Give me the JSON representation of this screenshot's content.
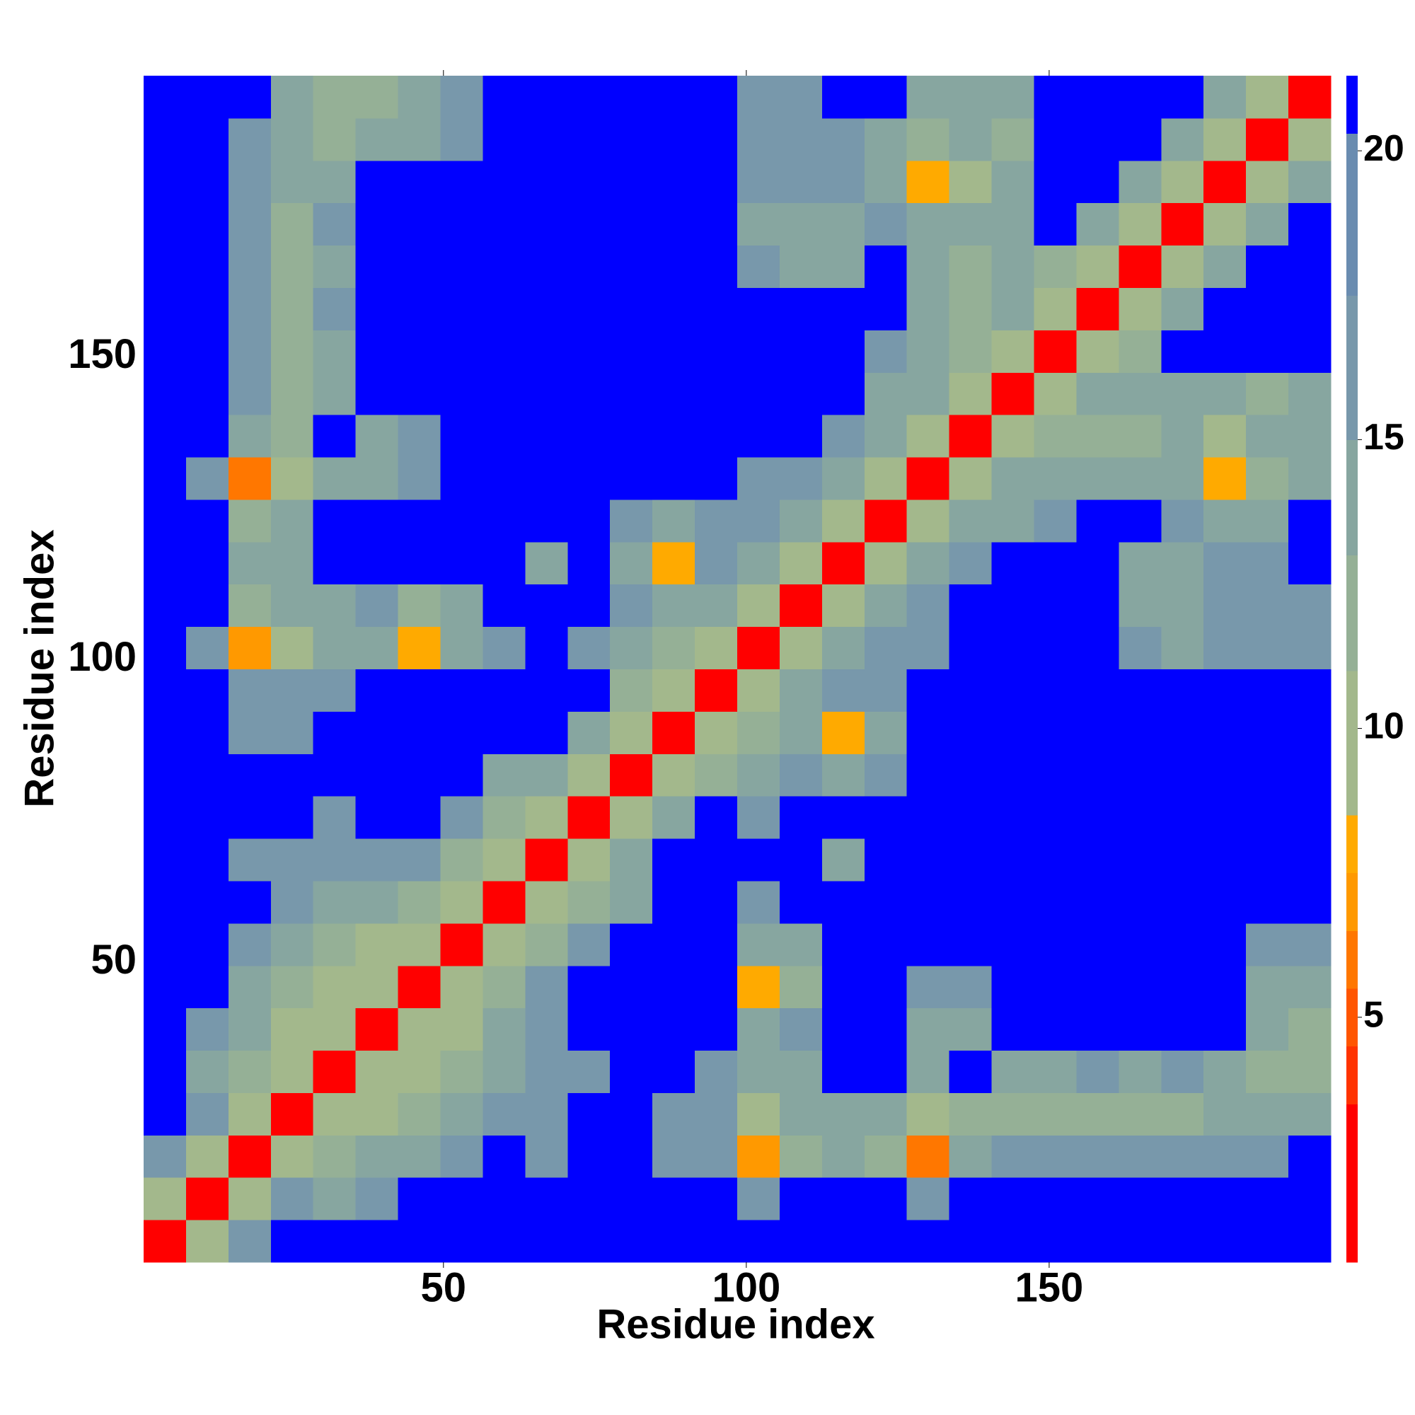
{
  "chart_data": {
    "type": "heatmap",
    "xlabel": "Residue index",
    "ylabel": "Residue index",
    "xlim": [
      0.5,
      196.5
    ],
    "ylim": [
      0.5,
      196.5
    ],
    "xticks": [
      50,
      100,
      150
    ],
    "yticks": [
      50,
      100,
      150
    ],
    "xbins": [
      0.5,
      7.5,
      14.5,
      21.5,
      28.5,
      35.5,
      42.5,
      49.5,
      56.5,
      63.5,
      70.5,
      77.5,
      84.5,
      91.5,
      98.5,
      105.5,
      112.5,
      119.5,
      126.5,
      133.5,
      140.5,
      147.5,
      154.5,
      161.5,
      168.5,
      175.5,
      182.5,
      189.5,
      196.5
    ],
    "ybins": [
      0.5,
      7.5,
      14.5,
      21.5,
      28.5,
      35.5,
      42.5,
      49.5,
      56.5,
      63.5,
      70.5,
      77.5,
      84.5,
      91.5,
      98.5,
      105.5,
      112.5,
      119.5,
      126.5,
      133.5,
      140.5,
      147.5,
      154.5,
      161.5,
      168.5,
      175.5,
      182.5,
      189.5,
      196.5
    ],
    "z": [
      [
        3,
        10,
        16,
        21,
        21,
        21,
        21,
        21,
        21,
        21,
        21,
        21,
        21,
        21,
        21,
        21,
        21,
        21,
        21,
        21,
        21,
        21,
        21,
        21,
        21,
        21,
        21,
        21
      ],
      [
        10,
        3,
        10,
        16,
        14,
        15,
        21,
        21,
        21,
        21,
        21,
        21,
        21,
        21,
        15,
        21,
        21,
        21,
        15,
        21,
        21,
        21,
        21,
        21,
        21,
        21,
        21,
        21
      ],
      [
        16,
        10,
        3,
        10,
        11,
        13,
        14,
        15,
        21,
        15,
        21,
        21,
        16,
        15,
        7,
        12,
        14,
        12,
        6,
        13,
        15,
        16,
        17,
        17,
        16,
        15,
        16,
        21
      ],
      [
        21,
        16,
        10,
        3,
        10,
        10,
        12,
        13,
        15,
        16,
        21,
        21,
        16,
        15,
        10,
        13,
        14,
        13,
        9,
        12,
        11,
        12,
        12,
        11,
        12,
        13,
        13,
        14
      ],
      [
        21,
        14,
        11,
        10,
        3,
        10,
        10,
        12,
        14,
        15,
        15,
        21,
        21,
        16,
        13,
        14,
        21,
        21,
        13,
        21,
        14,
        14,
        15,
        14,
        15,
        13,
        12,
        12
      ],
      [
        21,
        15,
        13,
        10,
        10,
        3,
        10,
        10,
        13,
        15,
        21,
        21,
        21,
        21,
        13,
        15,
        21,
        21,
        14,
        14,
        21,
        21,
        21,
        21,
        21,
        21,
        13,
        12
      ],
      [
        21,
        21,
        14,
        12,
        10,
        10,
        3,
        10,
        12,
        15,
        21,
        21,
        21,
        21,
        8,
        12,
        21,
        21,
        15,
        16,
        21,
        21,
        21,
        21,
        21,
        21,
        14,
        13
      ],
      [
        21,
        21,
        15,
        13,
        12,
        10,
        10,
        3,
        10,
        12,
        15,
        21,
        21,
        21,
        14,
        14,
        21,
        21,
        21,
        21,
        21,
        21,
        21,
        21,
        21,
        21,
        16,
        16
      ],
      [
        21,
        21,
        21,
        15,
        14,
        13,
        12,
        10,
        3,
        10,
        12,
        14,
        21,
        21,
        16,
        21,
        21,
        21,
        21,
        21,
        21,
        21,
        21,
        21,
        21,
        21,
        21,
        21
      ],
      [
        21,
        21,
        15,
        16,
        15,
        15,
        15,
        12,
        10,
        3,
        10,
        13,
        21,
        21,
        21,
        21,
        14,
        21,
        21,
        21,
        21,
        21,
        21,
        21,
        21,
        21,
        21,
        21
      ],
      [
        21,
        21,
        21,
        21,
        15,
        21,
        21,
        15,
        12,
        10,
        3,
        10,
        13,
        21,
        15,
        21,
        21,
        21,
        21,
        21,
        21,
        21,
        21,
        21,
        21,
        21,
        21,
        21
      ],
      [
        21,
        21,
        21,
        21,
        21,
        21,
        21,
        21,
        14,
        13,
        10,
        3,
        10,
        12,
        14,
        15,
        14,
        15,
        21,
        21,
        21,
        21,
        21,
        21,
        21,
        21,
        21,
        21
      ],
      [
        21,
        21,
        16,
        16,
        21,
        21,
        21,
        21,
        21,
        21,
        13,
        10,
        3,
        10,
        12,
        14,
        8,
        13,
        21,
        21,
        21,
        21,
        21,
        21,
        21,
        21,
        21,
        21
      ],
      [
        21,
        21,
        15,
        15,
        16,
        21,
        21,
        21,
        21,
        21,
        21,
        12,
        10,
        3,
        10,
        13,
        15,
        16,
        21,
        21,
        21,
        21,
        21,
        21,
        21,
        21,
        21,
        21
      ],
      [
        21,
        15,
        7,
        10,
        13,
        13,
        8,
        14,
        16,
        21,
        15,
        14,
        12,
        10,
        3,
        10,
        13,
        15,
        16,
        21,
        21,
        21,
        21,
        15,
        14,
        15,
        15,
        16
      ],
      [
        21,
        21,
        12,
        13,
        14,
        15,
        12,
        14,
        21,
        21,
        21,
        15,
        14,
        13,
        10,
        3,
        10,
        13,
        15,
        21,
        21,
        21,
        21,
        14,
        13,
        15,
        15,
        15
      ],
      [
        21,
        21,
        14,
        14,
        21,
        21,
        21,
        21,
        21,
        14,
        21,
        14,
        8,
        15,
        13,
        10,
        3,
        10,
        14,
        15,
        21,
        21,
        21,
        14,
        14,
        15,
        15,
        21
      ],
      [
        21,
        21,
        12,
        13,
        21,
        21,
        21,
        21,
        21,
        21,
        21,
        15,
        13,
        16,
        15,
        13,
        10,
        3,
        10,
        13,
        14,
        16,
        21,
        21,
        15,
        13,
        14,
        21
      ],
      [
        21,
        15,
        6,
        9,
        13,
        14,
        15,
        21,
        21,
        21,
        21,
        21,
        21,
        21,
        16,
        15,
        14,
        10,
        3,
        10,
        13,
        13,
        14,
        13,
        14,
        8,
        12,
        13
      ],
      [
        21,
        21,
        13,
        12,
        21,
        14,
        16,
        21,
        21,
        21,
        21,
        21,
        21,
        21,
        21,
        21,
        15,
        13,
        10,
        3,
        10,
        12,
        11,
        12,
        13,
        10,
        13,
        14
      ],
      [
        21,
        21,
        15,
        11,
        14,
        21,
        21,
        21,
        21,
        21,
        21,
        21,
        21,
        21,
        21,
        21,
        21,
        14,
        13,
        10,
        3,
        10,
        13,
        13,
        14,
        13,
        12,
        13
      ],
      [
        21,
        21,
        16,
        12,
        14,
        21,
        21,
        21,
        21,
        21,
        21,
        21,
        21,
        21,
        21,
        21,
        21,
        16,
        13,
        12,
        10,
        3,
        10,
        12,
        21,
        21,
        21,
        21
      ],
      [
        21,
        21,
        17,
        12,
        15,
        21,
        21,
        21,
        21,
        21,
        21,
        21,
        21,
        21,
        21,
        21,
        21,
        21,
        14,
        11,
        13,
        10,
        3,
        10,
        13,
        21,
        21,
        21
      ],
      [
        21,
        21,
        17,
        11,
        14,
        21,
        21,
        21,
        21,
        21,
        21,
        21,
        21,
        21,
        15,
        14,
        14,
        21,
        13,
        12,
        13,
        12,
        10,
        3,
        10,
        13,
        21,
        21
      ],
      [
        21,
        21,
        16,
        12,
        15,
        21,
        21,
        21,
        21,
        21,
        21,
        21,
        21,
        21,
        14,
        13,
        14,
        15,
        14,
        13,
        14,
        21,
        13,
        10,
        3,
        10,
        13,
        21
      ],
      [
        21,
        21,
        15,
        13,
        13,
        21,
        21,
        21,
        21,
        21,
        21,
        21,
        21,
        21,
        15,
        15,
        15,
        13,
        8,
        10,
        13,
        21,
        21,
        13,
        10,
        3,
        10,
        13
      ],
      [
        21,
        21,
        16,
        13,
        12,
        13,
        14,
        16,
        21,
        21,
        21,
        21,
        21,
        21,
        15,
        15,
        15,
        14,
        12,
        13,
        12,
        21,
        21,
        21,
        13,
        10,
        3,
        10
      ],
      [
        21,
        21,
        21,
        14,
        12,
        12,
        13,
        16,
        21,
        21,
        21,
        21,
        21,
        21,
        16,
        15,
        21,
        21,
        13,
        14,
        13,
        21,
        21,
        21,
        21,
        13,
        10,
        3
      ]
    ],
    "levels": [
      0.76,
      3.5,
      4.5,
      5.5,
      6.5,
      7.5,
      8.5,
      11,
      13,
      15,
      17.5,
      20.3,
      21.3
    ],
    "colors": [
      "#ff0000",
      "#ff3300",
      "#ff5500",
      "#ff7700",
      "#ff9900",
      "#ffaa00",
      "#a3b88c",
      "#95b096",
      "#87a6a0",
      "#7898ab",
      "#6a8cb0",
      "#0000ff"
    ],
    "cbar_ticks": [
      5,
      10,
      15,
      20
    ]
  }
}
